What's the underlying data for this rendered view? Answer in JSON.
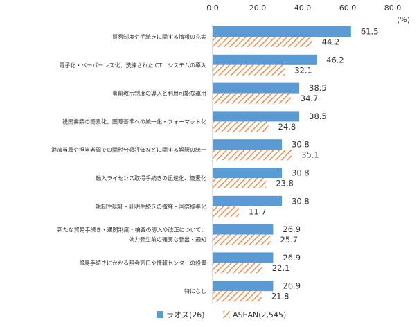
{
  "chart_data": {
    "type": "bar",
    "orientation": "horizontal",
    "title": "",
    "xlabel": "",
    "ylabel": "",
    "unit_label": "(%)",
    "xlim": [
      0,
      80
    ],
    "x_ticks": [
      "0.0",
      "20.0",
      "40.0",
      "60.0",
      "80.0"
    ],
    "axis_position": "top",
    "grid": false,
    "legend_position": "bottom-left",
    "categories": [
      [
        "貿易制度や手続きに関する情報の充実"
      ],
      [
        "電子化・ペーパーレス化、洗練されたICT　システムの導入"
      ],
      [
        "事前教示制度の導入と利用可能な運用"
      ],
      [
        "税関書類の簡素化、国際基準への統一化・フォーマット化"
      ],
      [
        "港湾当局や担当者間での関税分類評価などに関する解釈の統一"
      ],
      [
        "輸入ライセンス取得手続きの迅速化、簡素化"
      ],
      [
        "規制や認証・証明手続きの撤廃・国際標準化"
      ],
      [
        "新たな貿易手続き・通関制度・検査の導入や改正について、",
        "効力発生前の確実な発出・通知"
      ],
      [
        "貿易手続きにかかる照会窓口や情報センターの設置"
      ],
      [
        "特になし"
      ]
    ],
    "series": [
      {
        "name": "ラオス(26)",
        "color": "#5b9bd5",
        "pattern": "solid",
        "values": [
          61.5,
          46.2,
          38.5,
          38.5,
          30.8,
          30.8,
          30.8,
          26.9,
          26.9,
          26.9
        ],
        "labels": [
          "61.5",
          "46.2",
          "38.5",
          "38.5",
          "30.8",
          "30.8",
          "30.8",
          "26.9",
          "26.9",
          "26.9"
        ]
      },
      {
        "name": "ASEAN(2,545)",
        "color": "#ed7d31",
        "pattern": "diagonal-hatch",
        "values": [
          44.2,
          32.1,
          34.7,
          24.8,
          35.1,
          23.8,
          11.7,
          25.7,
          22.1,
          21.8
        ],
        "labels": [
          "44.2",
          "32.1",
          "34.7",
          "24.8",
          "35.1",
          "23.8",
          "11.7",
          "25.7",
          "22.1",
          "21.8"
        ]
      }
    ]
  }
}
